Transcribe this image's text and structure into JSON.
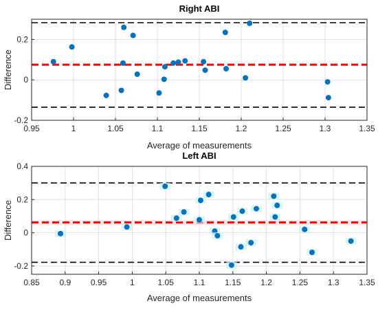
{
  "chart_data": [
    {
      "type": "scatter",
      "title": "Right ABI",
      "xlabel": "Average of measurements",
      "ylabel": "Difference",
      "xlim": [
        0.95,
        1.35
      ],
      "ylim": [
        -0.2,
        0.3
      ],
      "xticks": [
        "0.95",
        "1",
        "1.05",
        "1.1",
        "1.15",
        "1.2",
        "1.25",
        "1.3",
        "1.35"
      ],
      "xtick_values": [
        0.95,
        1.0,
        1.05,
        1.1,
        1.15,
        1.2,
        1.25,
        1.3,
        1.35
      ],
      "yticks": [
        "-0.2",
        "0",
        "0.2"
      ],
      "ytick_values": [
        -0.2,
        0,
        0.2
      ],
      "grid": true,
      "mean_line": 0.075,
      "upper_limit": 0.283,
      "lower_limit": -0.135,
      "point_color": "#0072bd",
      "mean_color": "#ff0000",
      "limit_color": "#000000",
      "points": [
        {
          "x": 0.976,
          "y": 0.09
        },
        {
          "x": 0.998,
          "y": 0.163
        },
        {
          "x": 1.039,
          "y": -0.077
        },
        {
          "x": 1.057,
          "y": -0.052
        },
        {
          "x": 1.059,
          "y": 0.083
        },
        {
          "x": 1.06,
          "y": 0.26
        },
        {
          "x": 1.071,
          "y": 0.22
        },
        {
          "x": 1.076,
          "y": 0.028
        },
        {
          "x": 1.102,
          "y": -0.065
        },
        {
          "x": 1.108,
          "y": 0.003
        },
        {
          "x": 1.109,
          "y": 0.065
        },
        {
          "x": 1.119,
          "y": 0.083
        },
        {
          "x": 1.125,
          "y": 0.088
        },
        {
          "x": 1.133,
          "y": 0.094
        },
        {
          "x": 1.155,
          "y": 0.09
        },
        {
          "x": 1.157,
          "y": 0.048
        },
        {
          "x": 1.181,
          "y": 0.235
        },
        {
          "x": 1.182,
          "y": 0.055
        },
        {
          "x": 1.205,
          "y": 0.01
        },
        {
          "x": 1.21,
          "y": 0.28
        },
        {
          "x": 1.303,
          "y": -0.01
        },
        {
          "x": 1.304,
          "y": -0.088
        }
      ]
    },
    {
      "type": "scatter",
      "title": "Left ABI",
      "xlabel": "Average of measurements",
      "ylabel": "Difference",
      "xlim": [
        0.85,
        1.35
      ],
      "ylim": [
        -0.25,
        0.4
      ],
      "xticks": [
        "0.85",
        "0.9",
        "0.95",
        "1",
        "1.05",
        "1.1",
        "1.15",
        "1.2",
        "1.25",
        "1.3",
        "1.35"
      ],
      "xtick_values": [
        0.85,
        0.9,
        0.95,
        1.0,
        1.05,
        1.1,
        1.15,
        1.2,
        1.25,
        1.3,
        1.35
      ],
      "yticks": [
        "-0.2",
        "0",
        "0.2",
        "0.4"
      ],
      "ytick_values": [
        -0.2,
        0,
        0.2,
        0.4
      ],
      "grid": true,
      "mean_line": 0.062,
      "upper_limit": 0.3,
      "lower_limit": -0.178,
      "point_color": "#0072bd",
      "mean_color": "#ff0000",
      "limit_color": "#000000",
      "points": [
        {
          "x": 0.893,
          "y": -0.005
        },
        {
          "x": 0.992,
          "y": 0.035
        },
        {
          "x": 1.049,
          "y": 0.28
        },
        {
          "x": 1.066,
          "y": 0.088
        },
        {
          "x": 1.077,
          "y": 0.125
        },
        {
          "x": 1.1,
          "y": 0.078
        },
        {
          "x": 1.102,
          "y": 0.195
        },
        {
          "x": 1.114,
          "y": 0.23
        },
        {
          "x": 1.123,
          "y": 0.01
        },
        {
          "x": 1.127,
          "y": -0.018
        },
        {
          "x": 1.148,
          "y": -0.195
        },
        {
          "x": 1.151,
          "y": 0.095
        },
        {
          "x": 1.162,
          "y": -0.085
        },
        {
          "x": 1.164,
          "y": 0.13
        },
        {
          "x": 1.177,
          "y": -0.06
        },
        {
          "x": 1.185,
          "y": 0.145
        },
        {
          "x": 1.211,
          "y": 0.22
        },
        {
          "x": 1.213,
          "y": 0.095
        },
        {
          "x": 1.216,
          "y": 0.165
        },
        {
          "x": 1.257,
          "y": 0.02
        },
        {
          "x": 1.268,
          "y": -0.118
        },
        {
          "x": 1.326,
          "y": -0.05
        }
      ]
    }
  ]
}
